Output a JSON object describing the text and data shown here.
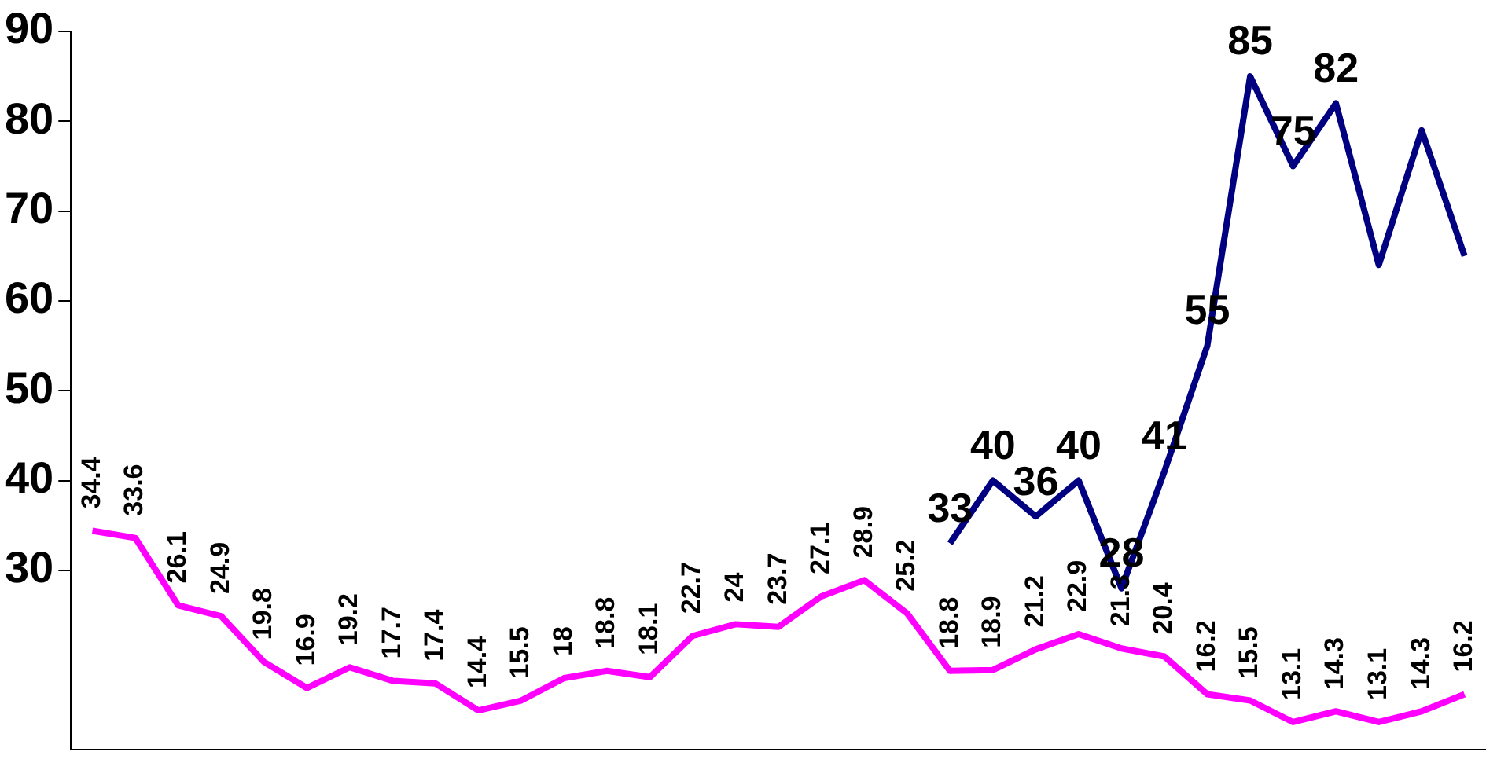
{
  "chart_data": {
    "type": "line",
    "categories": [
      null,
      null,
      null,
      null,
      null,
      null,
      null,
      null,
      null,
      null,
      null,
      null,
      null,
      null,
      null,
      null,
      null,
      null,
      null,
      null,
      null,
      null,
      null,
      null,
      null,
      null,
      null,
      null,
      null,
      null,
      null,
      null,
      null
    ],
    "ylim": [
      10,
      90
    ],
    "yticks": [
      30,
      40,
      50,
      60,
      70,
      80,
      90
    ],
    "grid": false,
    "legend": false,
    "marker": "none",
    "line_style": "solid",
    "tick_labels": "y",
    "series": [
      {
        "color": "#ff00ff",
        "values": [
          34.4,
          33.6,
          26.1,
          24.9,
          19.8,
          16.9,
          19.2,
          17.7,
          17.4,
          14.4,
          15.5,
          18,
          18.8,
          18.1,
          22.7,
          24,
          23.7,
          27.1,
          28.9,
          25.2,
          18.8,
          18.9,
          21.2,
          22.9,
          21.3,
          20.4,
          16.2,
          15.5,
          13.1,
          14.3,
          13.1,
          14.3,
          16.2
        ],
        "value_labels": [
          "34.4",
          "33.6",
          "26.1",
          "24.9",
          "19.8",
          "16.9",
          "19.2",
          "17.7",
          "17.4",
          "14.4",
          "15.5",
          "18",
          "18.8",
          "18.1",
          "22.7",
          "24",
          "23.7",
          "27.1",
          "28.9",
          "25.2",
          "18.8",
          "18.9",
          "21.2",
          "22.9",
          "21.3",
          "20.4",
          "16.2",
          "15.5",
          "13.1",
          "14.3",
          "13.1",
          "14.3",
          "16.2"
        ]
      },
      {
        "color": "#000080",
        "values": [
          null,
          null,
          null,
          null,
          null,
          null,
          null,
          null,
          null,
          null,
          null,
          null,
          null,
          null,
          null,
          null,
          null,
          null,
          null,
          null,
          33,
          40,
          36,
          40,
          28,
          41,
          55,
          85,
          75,
          82,
          64,
          79,
          65
        ],
        "value_labels": [
          null,
          null,
          null,
          null,
          null,
          null,
          null,
          null,
          null,
          null,
          null,
          null,
          null,
          null,
          null,
          null,
          null,
          null,
          null,
          null,
          "33",
          "40",
          "36",
          "40",
          "28",
          "41",
          "55",
          "85",
          "75",
          "82",
          null,
          null,
          null
        ]
      }
    ]
  }
}
